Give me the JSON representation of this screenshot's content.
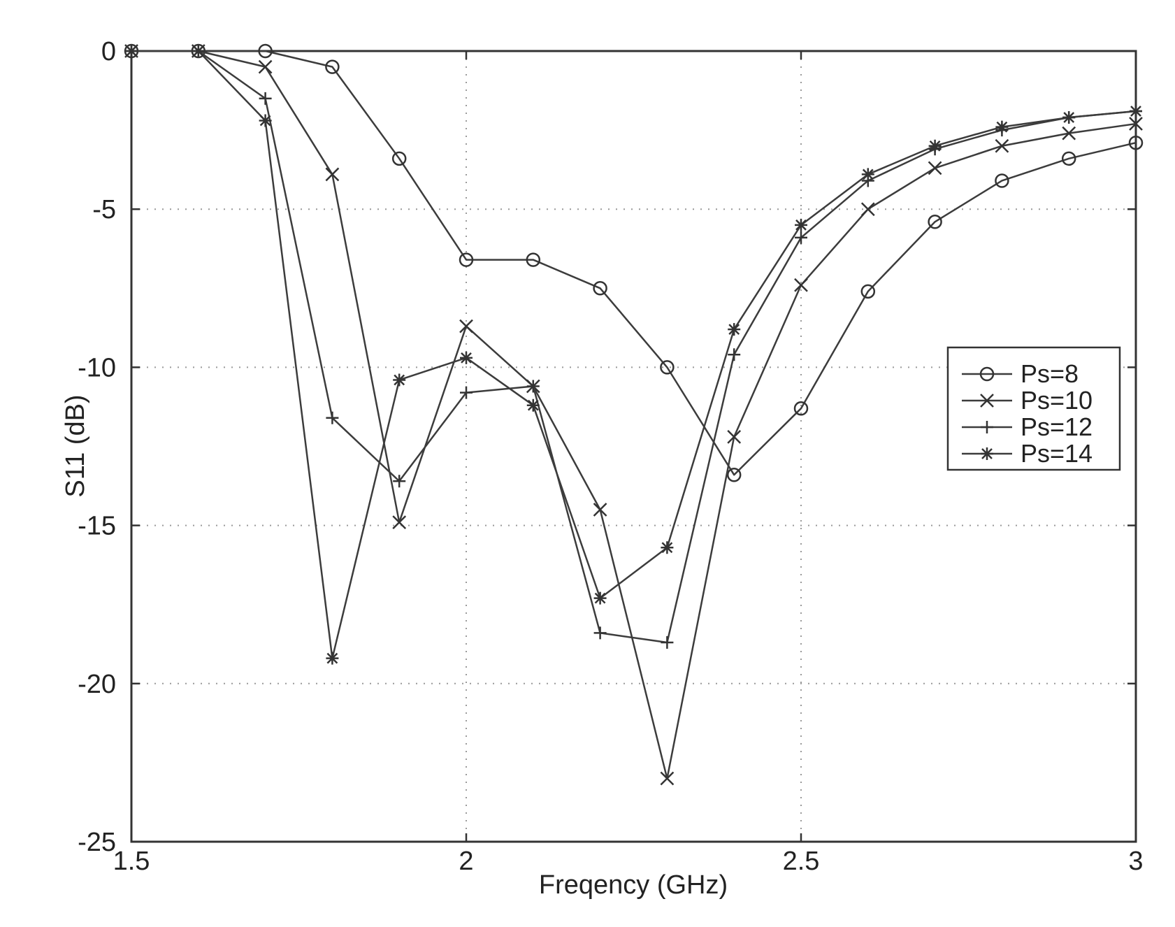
{
  "chart_data": {
    "type": "line",
    "xlabel": "Freqency (GHz)",
    "ylabel": "S11 (dB)",
    "xlim": [
      1.5,
      3
    ],
    "ylim": [
      -25,
      0
    ],
    "xticks": [
      1.5,
      2,
      2.5,
      3
    ],
    "yticks": [
      0,
      -5,
      -10,
      -15,
      -20,
      -25
    ],
    "xtick_labels": [
      "1.5",
      "2",
      "2.5",
      "3"
    ],
    "ytick_labels": [
      "0",
      "-5",
      "-10",
      "-15",
      "-20",
      "-25"
    ],
    "grid": true,
    "legend_position": "right",
    "x": [
      1.5,
      1.6,
      1.7,
      1.8,
      1.9,
      2.0,
      2.1,
      2.2,
      2.3,
      2.4,
      2.5,
      2.6,
      2.7,
      2.8,
      2.9,
      3.0
    ],
    "series": [
      {
        "name": "Ps=8",
        "marker": "circle",
        "values": [
          0,
          0,
          0,
          -0.5,
          -3.4,
          -6.6,
          -6.6,
          -7.5,
          -10.0,
          -13.4,
          -11.3,
          -7.6,
          -5.4,
          -4.1,
          -3.4,
          -2.9
        ]
      },
      {
        "name": "Ps=10",
        "marker": "x",
        "values": [
          0,
          0,
          -0.5,
          -3.9,
          -14.9,
          -8.7,
          -10.6,
          -14.5,
          -23.0,
          -12.2,
          -7.4,
          -5.0,
          -3.7,
          -3.0,
          -2.6,
          -2.3
        ]
      },
      {
        "name": "Ps=12",
        "marker": "plus",
        "values": [
          0,
          0,
          -1.5,
          -11.6,
          -13.6,
          -10.8,
          -10.6,
          -18.4,
          -18.7,
          -9.6,
          -5.9,
          -4.1,
          -3.1,
          -2.5,
          -2.1,
          -1.9
        ]
      },
      {
        "name": "Ps=14",
        "marker": "star",
        "values": [
          0,
          0,
          -2.2,
          -19.2,
          -10.4,
          -9.7,
          -11.2,
          -17.3,
          -15.7,
          -8.8,
          -5.5,
          -3.9,
          -3.0,
          -2.4,
          -2.1,
          -1.9
        ]
      }
    ]
  }
}
